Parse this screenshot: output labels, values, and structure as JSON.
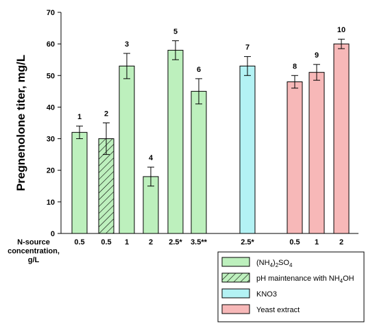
{
  "chart_data": {
    "type": "bar",
    "ylabel": "Pregnenolone titer, mg/L",
    "ylim": [
      0,
      70
    ],
    "yticks": [
      0,
      10,
      20,
      30,
      40,
      50,
      60,
      70
    ],
    "x_row_label": [
      "N-source",
      "concentration,",
      "g/L"
    ],
    "bars": [
      {
        "label": "1",
        "x": "0.5",
        "value": 32,
        "err": 2,
        "series": 0
      },
      {
        "label": "2",
        "x": "0.5",
        "value": 30,
        "err": 5,
        "series": 1
      },
      {
        "label": "3",
        "x": "1",
        "value": 53,
        "err": 4,
        "series": 0
      },
      {
        "label": "4",
        "x": "2",
        "value": 18,
        "err": 3,
        "series": 0
      },
      {
        "label": "5",
        "x": "2.5*",
        "value": 58,
        "err": 3,
        "series": 0
      },
      {
        "label": "6",
        "x": "3.5**",
        "value": 45,
        "err": 4,
        "series": 0
      },
      {
        "label": "7",
        "x": "2.5*",
        "value": 53,
        "err": 3,
        "series": 2
      },
      {
        "label": "8",
        "x": "0.5",
        "value": 48,
        "err": 2,
        "series": 3
      },
      {
        "label": "9",
        "x": "1",
        "value": 51,
        "err": 2.5,
        "series": 3
      },
      {
        "label": "10",
        "x": "2",
        "value": 60,
        "err": 1.5,
        "series": 3
      }
    ],
    "series": [
      {
        "name_parts": [
          "(NH",
          "4",
          ")",
          "2",
          "SO",
          "4",
          ""
        ],
        "color": "#bdf0bd",
        "hatched": false
      },
      {
        "name_parts": [
          "pH maintenance with NH",
          "4",
          "OH"
        ],
        "color": "#bdf0bd",
        "hatched": true
      },
      {
        "name_parts": [
          "KNO3"
        ],
        "color": "#b3f2f4",
        "hatched": false
      },
      {
        "name_parts": [
          "Yeast extract"
        ],
        "color": "#f7b8b8",
        "hatched": false
      }
    ],
    "legend": "bottom-right",
    "grid": false
  }
}
